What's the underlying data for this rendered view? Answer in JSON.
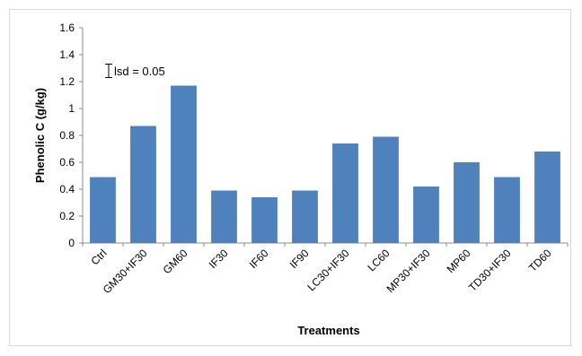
{
  "chart_data": {
    "type": "bar",
    "title": "",
    "xlabel": "Treatments",
    "ylabel": "Phenolic C (g/kg)",
    "ylim": [
      0,
      1.6
    ],
    "yticks": [
      "0",
      "0.2",
      "0.4",
      "0.6",
      "0.8",
      "1",
      "1.2",
      "1.4",
      "1.6"
    ],
    "categories": [
      "Ctrl",
      "GM30+IF30",
      "GM60",
      "IF30",
      "IF60",
      "IF90",
      "LC30+IF30",
      "LC60",
      "MP30+IF30",
      "MP60",
      "TD30+IF30",
      "TD60"
    ],
    "values": [
      0.49,
      0.87,
      1.17,
      0.39,
      0.34,
      0.39,
      0.74,
      0.79,
      0.42,
      0.6,
      0.49,
      0.68
    ],
    "bar_color": "#4f81bd",
    "grid": false,
    "legend": "none",
    "annotation": {
      "text": "lsd = 0.05",
      "errorbar_y": 1.28,
      "errorbar_halfwidth": 0.05
    }
  }
}
